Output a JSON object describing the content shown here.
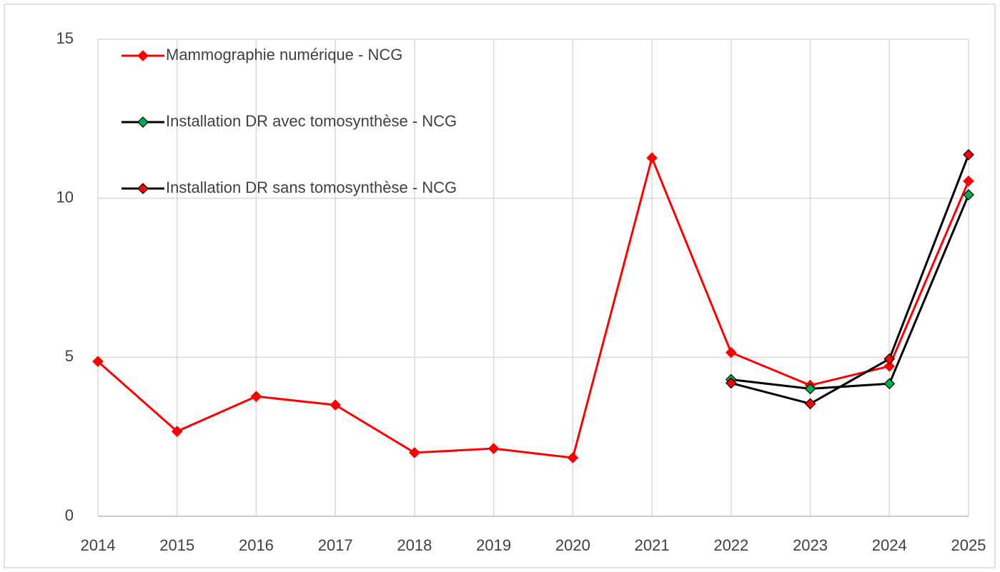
{
  "chart_data": {
    "type": "line",
    "x": [
      2014,
      2015,
      2016,
      2017,
      2018,
      2019,
      2020,
      2021,
      2022,
      2023,
      2024,
      2025
    ],
    "xlim": [
      2014,
      2025
    ],
    "xticks": [
      2014,
      2015,
      2016,
      2017,
      2018,
      2019,
      2020,
      2021,
      2022,
      2023,
      2024,
      2025
    ],
    "ylim": [
      0,
      15
    ],
    "yticks": [
      0,
      5,
      10,
      15
    ],
    "grid": true,
    "legend": "upper left",
    "series": [
      {
        "name": "Mammographie numérique - NCG",
        "color": "#ff0000",
        "marker_color": "#ff0000",
        "values": [
          4.87,
          2.67,
          3.77,
          3.5,
          2.0,
          2.13,
          1.84,
          11.27,
          5.15,
          4.12,
          4.72,
          10.54
        ]
      },
      {
        "name": "Installation DR avec tomosynthèse - NCG",
        "color": "#000000",
        "marker_color": "#00b050",
        "values": [
          null,
          null,
          null,
          null,
          null,
          null,
          null,
          null,
          4.3,
          4.01,
          4.17,
          10.11
        ]
      },
      {
        "name": "Installation DR sans tomosynthèse - NCG",
        "color": "#000000",
        "marker_color": "#ff0000",
        "values": [
          null,
          null,
          null,
          null,
          null,
          null,
          null,
          null,
          4.19,
          3.54,
          4.95,
          11.37
        ]
      }
    ]
  }
}
